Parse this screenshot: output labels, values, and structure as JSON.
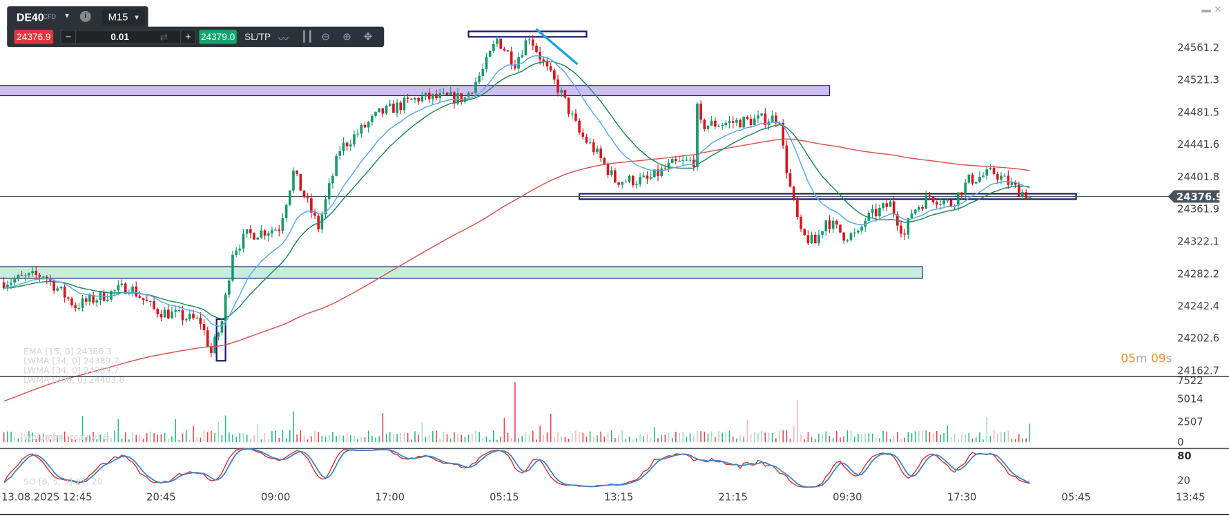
{
  "toolbar": {
    "symbol": "DE40",
    "symbol_type": "CFD",
    "info_icon": "info-icon",
    "timeframe": "M15",
    "bid_price": "24376.9",
    "quantity": "0.01",
    "ask_price": "24379.0",
    "sltp_label": "SL/TP",
    "icons": [
      "line-chart-icon",
      "candlestick-icon",
      "zoom-out-icon",
      "zoom-in-icon",
      "move-icon"
    ]
  },
  "window_controls": {
    "minimize": "▬",
    "close": "✕"
  },
  "price_axis": [
    "24561.2",
    "24521.3",
    "24481.5",
    "24441.6",
    "24401.8",
    "24361.9",
    "24322.1",
    "24282.2",
    "24242.4",
    "24202.6",
    "24162.7"
  ],
  "current_price": "24376.9",
  "countdown": {
    "min": "05",
    "m": "m",
    "sec": "09",
    "s": "s"
  },
  "legends": {
    "main": [
      "EMA [15, 0] 24386.3",
      "LWMA [34, 0] 24389.7",
      "LWMA [34, 0] 24389.7",
      "LWMA [200, 0] 24403.8"
    ],
    "volume": "Wolumen (realny) 6",
    "stoch": "SO [8, 5, 3] 21, 20"
  },
  "volume_axis": [
    "7522",
    "5014",
    "2507",
    "0"
  ],
  "stoch_axis": [
    "80",
    "20"
  ],
  "time_axis": [
    "13.08.2025 12:45",
    "20:45",
    "09:00",
    "17:00",
    "05:15",
    "13:15",
    "21:15",
    "09:30",
    "17:30",
    "05:45",
    "13:45"
  ],
  "colors": {
    "up": "#14996a",
    "down": "#d9141e",
    "ema": "#5aa9f0",
    "lwma34": "#1f8a5a",
    "lwma200": "#d9534f",
    "stoch_k": "#d23a3a",
    "stoch_d": "#3d85c6",
    "timer": "#f7931e"
  },
  "chart_data": {
    "type": "candlestick",
    "candles": 288,
    "price_path": [
      [
        0,
        24271.0
      ],
      [
        12,
        24280.7
      ],
      [
        21,
        24242.0
      ],
      [
        36,
        24266.2
      ],
      [
        43,
        24237.2
      ],
      [
        56,
        24222.7
      ],
      [
        59,
        24184.0
      ],
      [
        62,
        24222.7
      ],
      [
        65,
        24309.7
      ],
      [
        69,
        24329.1
      ],
      [
        78,
        24338.7
      ],
      [
        82,
        24406.5
      ],
      [
        89,
        24338.7
      ],
      [
        95,
        24435.5
      ],
      [
        106,
        24479.0
      ],
      [
        117,
        24498.3
      ],
      [
        130,
        24498.3
      ],
      [
        135,
        24532.2
      ],
      [
        139,
        24570.9
      ],
      [
        144,
        24541.9
      ],
      [
        148,
        24575.7
      ],
      [
        153,
        24532.2
      ],
      [
        157,
        24503.2
      ],
      [
        162,
        24454.8
      ],
      [
        166,
        24435.5
      ],
      [
        172,
        24396.8
      ],
      [
        181,
        24396.8
      ],
      [
        188,
        24416.1
      ],
      [
        194,
        24420.9
      ],
      [
        195,
        24483.8
      ],
      [
        196,
        24464.5
      ],
      [
        207,
        24469.3
      ],
      [
        218,
        24474.2
      ],
      [
        219,
        24435.5
      ],
      [
        221,
        24387.1
      ],
      [
        224,
        24329.1
      ],
      [
        228,
        24319.4
      ],
      [
        231,
        24348.4
      ],
      [
        236,
        24329.1
      ],
      [
        240,
        24329.1
      ],
      [
        242,
        24348.4
      ],
      [
        249,
        24367.8
      ],
      [
        253,
        24329.1
      ],
      [
        255,
        24358.1
      ],
      [
        260,
        24377.4
      ],
      [
        266,
        24367.8
      ],
      [
        271,
        24396.8
      ],
      [
        278,
        24406.5
      ],
      [
        284,
        24387.1
      ],
      [
        288,
        24376.9
      ]
    ],
    "zones": [
      {
        "name": "resistance-zone",
        "from": 24501.2,
        "to": 24513.8,
        "start": -2,
        "end": 231,
        "color": "#cdbff0"
      },
      {
        "name": "support-zone",
        "from": 24275.9,
        "to": 24290.4,
        "start": -2,
        "end": 257,
        "color": "#c5eee0"
      },
      {
        "name": "top-box",
        "from": 24573.8,
        "to": 24580.5,
        "start": 130,
        "end": 163,
        "color": "none"
      },
      {
        "name": "mid-box",
        "from": 24373.6,
        "to": 24380.3,
        "start": 161,
        "end": 300,
        "color": "none"
      },
      {
        "name": "low-box",
        "from": 24174.3,
        "to": 24225.6,
        "start": 59.5,
        "end": 62,
        "color": "none"
      }
    ],
    "trendline": [
      [
        148.9,
        24583.4
      ],
      [
        160.5,
        24539.9
      ]
    ]
  }
}
